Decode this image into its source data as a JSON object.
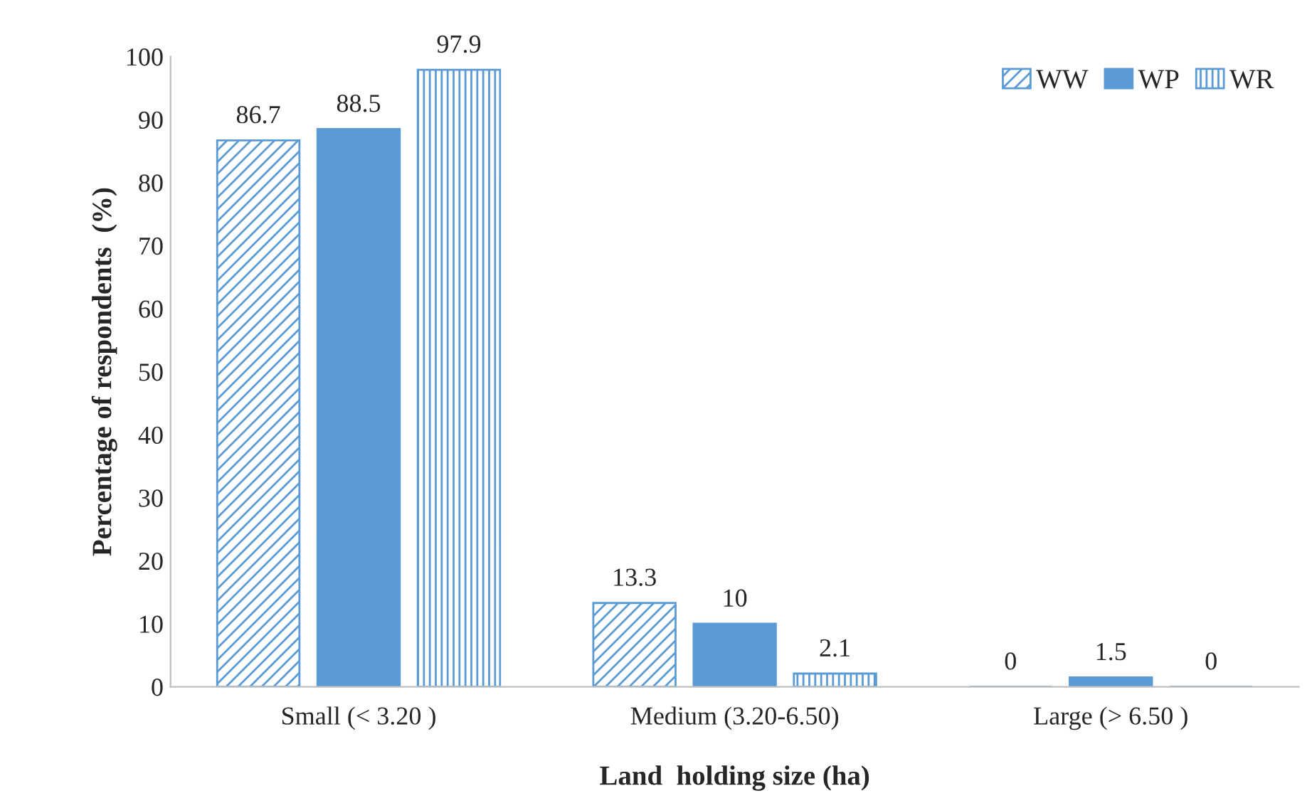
{
  "chart_data": {
    "type": "bar",
    "xlabel": "Land  holding size (ha)",
    "ylabel": "Percentage of respondents  (%)",
    "categories": [
      "Small (< 3.20 )",
      "Medium (3.20-6.50)",
      "Large (> 6.50 )"
    ],
    "series": [
      {
        "name": "WW",
        "color": "#5b9bd5",
        "values": [
          86.7,
          13.3,
          0
        ]
      },
      {
        "name": "WP",
        "color": "#5b9bd5",
        "values": [
          88.5,
          10,
          1.5
        ]
      },
      {
        "name": "WR",
        "color": "#5b9bd5",
        "values": [
          97.9,
          2.1,
          0
        ]
      }
    ],
    "ylim": [
      0,
      100
    ],
    "yticks": [
      0,
      10,
      20,
      30,
      40,
      50,
      60,
      70,
      80,
      90,
      100
    ],
    "data_labels": true,
    "legend": "top right",
    "grid": false
  }
}
